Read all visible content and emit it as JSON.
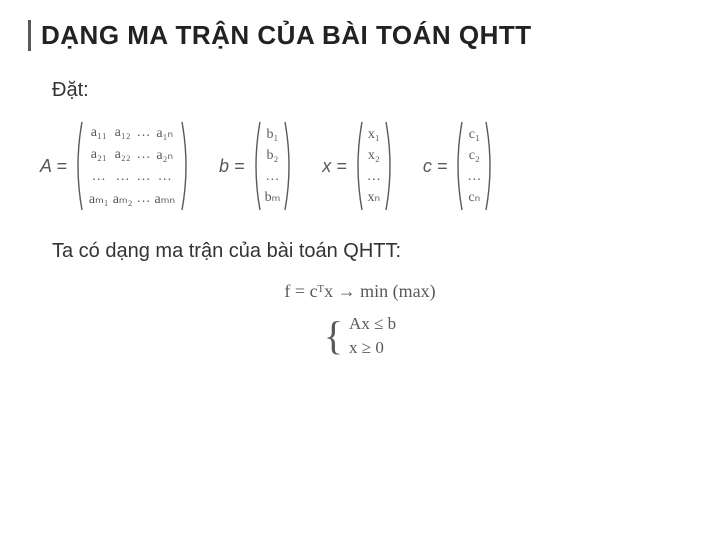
{
  "title": "DẠNG MA TRẬN CỦA BÀI TOÁN QHTT",
  "line_dat": "Đặt:",
  "line_taco": "Ta có dạng ma trận của bài toán QHTT:",
  "matrices": {
    "A": {
      "label": "A =",
      "rows": [
        [
          "a₁₁",
          "a₁₂",
          "…",
          "a₁ₙ"
        ],
        [
          "a₂₁",
          "a₂₂",
          "…",
          "a₂ₙ"
        ],
        [
          "…",
          "…",
          "…",
          "…"
        ],
        [
          "aₘ₁",
          "aₘ₂",
          "…",
          "aₘₙ"
        ]
      ],
      "cols": 4
    },
    "b": {
      "label": "b =",
      "items": [
        "b₁",
        "b₂",
        "…",
        "bₘ"
      ]
    },
    "x": {
      "label": "x =",
      "items": [
        "x₁",
        "x₂",
        "…",
        "xₙ"
      ]
    },
    "c": {
      "label": "c =",
      "items": [
        "c₁",
        "c₂",
        "…",
        "cₙ"
      ]
    }
  },
  "formula": {
    "objective": "f = cᵀx → min (max)",
    "system": [
      "Ax ≤ b",
      "x ≥ 0"
    ]
  },
  "style": {
    "title_color": "#222222",
    "text_color": "#595959",
    "title_fontsize": 26,
    "body_fontsize": 20,
    "matrix_fontsize": 14,
    "formula_fontsize": 18,
    "paren_stroke": "#595959",
    "paren_height_A": 92,
    "paren_height_vec": 92,
    "paren_width": 10
  }
}
